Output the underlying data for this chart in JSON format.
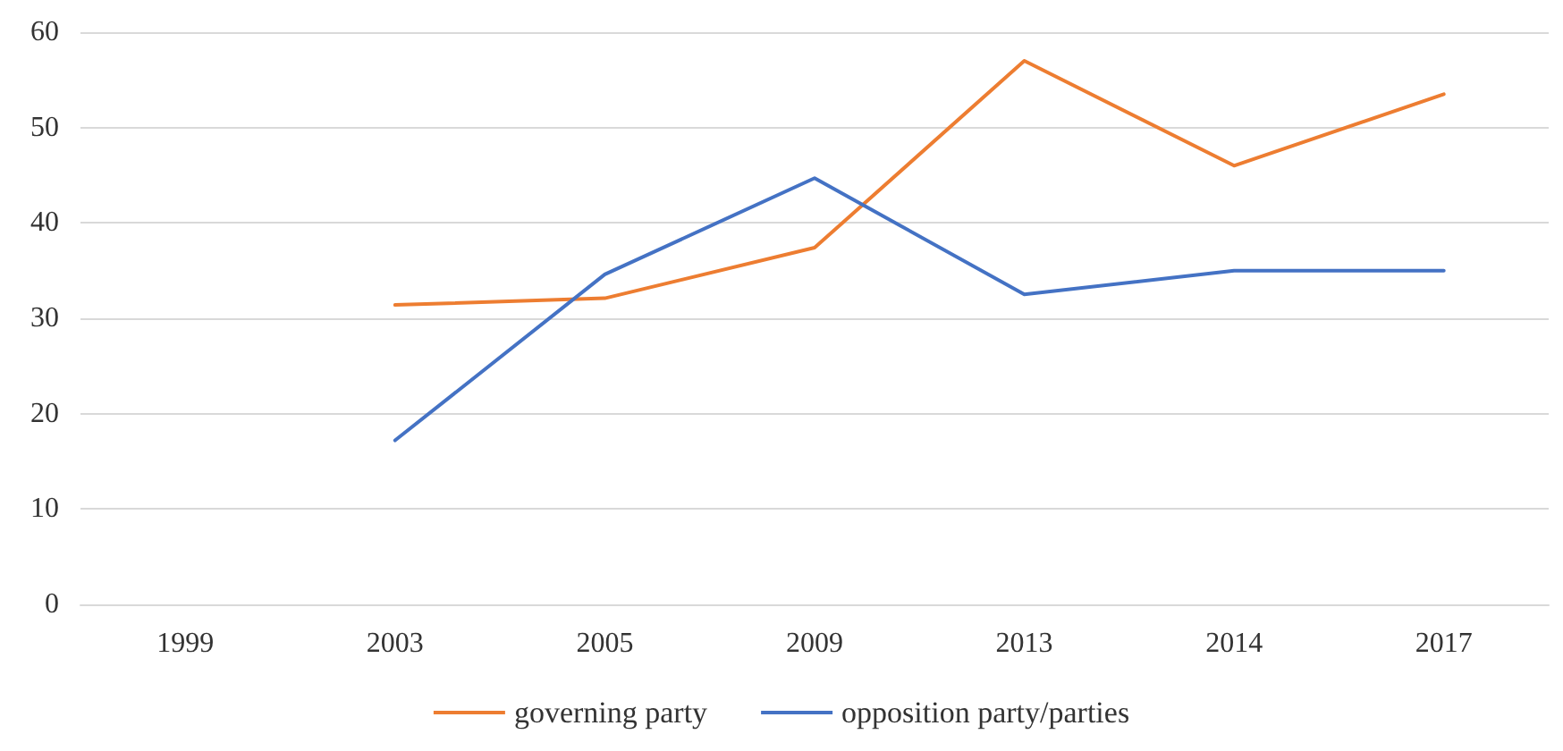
{
  "chart_data": {
    "type": "line",
    "categories": [
      "1999",
      "2003",
      "2005",
      "2009",
      "2013",
      "2014",
      "2017"
    ],
    "series": [
      {
        "name": "governing party",
        "color": "#ed7d31",
        "values": [
          null,
          31.4,
          32.1,
          37.4,
          57.0,
          46.0,
          53.5
        ]
      },
      {
        "name": "opposition party/parties",
        "color": "#4472c4",
        "values": [
          null,
          17.2,
          34.6,
          44.7,
          32.5,
          35.0,
          35.0
        ]
      }
    ],
    "ylim": [
      0,
      60
    ],
    "yticks": [
      0,
      10,
      20,
      30,
      40,
      50,
      60
    ],
    "grid": "y",
    "legend": "bottom",
    "marker": "none",
    "line_style": "solid"
  }
}
